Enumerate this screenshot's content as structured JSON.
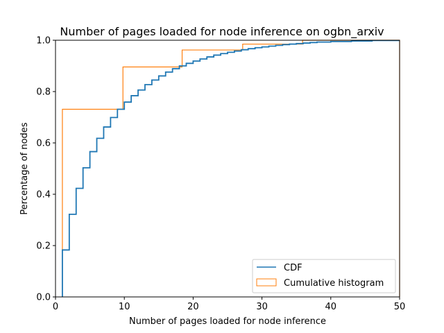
{
  "chart_data": {
    "type": "line",
    "title": "Number of pages loaded for node inference on ogbn_arxiv",
    "xlabel": "Number of pages loaded for node inference",
    "ylabel": "Percentage of nodes",
    "xlim": [
      0,
      50
    ],
    "ylim": [
      0,
      1.0
    ],
    "x_ticks": [
      0,
      10,
      20,
      30,
      40,
      50
    ],
    "y_ticks": [
      0.0,
      0.2,
      0.4,
      0.6,
      0.8,
      1.0
    ],
    "x_tick_labels": [
      "0",
      "10",
      "20",
      "30",
      "40",
      "50"
    ],
    "y_tick_labels": [
      "0.0",
      "0.2",
      "0.4",
      "0.6",
      "0.8",
      "1.0"
    ],
    "grid": false,
    "legend_position": "lower-right",
    "series": [
      {
        "name": "CDF",
        "style": "step",
        "color": "#1f77b4",
        "points": [
          [
            1,
            0.0
          ],
          [
            1,
            0.183
          ],
          [
            2,
            0.183
          ],
          [
            2,
            0.322
          ],
          [
            3,
            0.322
          ],
          [
            3,
            0.423
          ],
          [
            4,
            0.423
          ],
          [
            4,
            0.503
          ],
          [
            5,
            0.503
          ],
          [
            5,
            0.566
          ],
          [
            6,
            0.566
          ],
          [
            6,
            0.618
          ],
          [
            7,
            0.618
          ],
          [
            7,
            0.662
          ],
          [
            8,
            0.662
          ],
          [
            8,
            0.699
          ],
          [
            9,
            0.699
          ],
          [
            9,
            0.731
          ],
          [
            10,
            0.731
          ],
          [
            10,
            0.759
          ],
          [
            11,
            0.759
          ],
          [
            11,
            0.784
          ],
          [
            12,
            0.784
          ],
          [
            12,
            0.806
          ],
          [
            13,
            0.806
          ],
          [
            13,
            0.827
          ],
          [
            14,
            0.827
          ],
          [
            14,
            0.845
          ],
          [
            15,
            0.845
          ],
          [
            15,
            0.861
          ],
          [
            16,
            0.861
          ],
          [
            16,
            0.876
          ],
          [
            17,
            0.876
          ],
          [
            17,
            0.889
          ],
          [
            18,
            0.889
          ],
          [
            18,
            0.9
          ],
          [
            19,
            0.9
          ],
          [
            19,
            0.91
          ],
          [
            20,
            0.91
          ],
          [
            20,
            0.919
          ],
          [
            21,
            0.919
          ],
          [
            21,
            0.927
          ],
          [
            22,
            0.927
          ],
          [
            22,
            0.935
          ],
          [
            23,
            0.935
          ],
          [
            23,
            0.942
          ],
          [
            24,
            0.942
          ],
          [
            24,
            0.948
          ],
          [
            25,
            0.948
          ],
          [
            25,
            0.953
          ],
          [
            26,
            0.953
          ],
          [
            26,
            0.958
          ],
          [
            27,
            0.958
          ],
          [
            27,
            0.963
          ],
          [
            28,
            0.963
          ],
          [
            28,
            0.967
          ],
          [
            29,
            0.967
          ],
          [
            29,
            0.971
          ],
          [
            30,
            0.971
          ],
          [
            30,
            0.974
          ],
          [
            31,
            0.974
          ],
          [
            31,
            0.977
          ],
          [
            32,
            0.977
          ],
          [
            32,
            0.98
          ],
          [
            33,
            0.98
          ],
          [
            33,
            0.983
          ],
          [
            34,
            0.983
          ],
          [
            34,
            0.985
          ],
          [
            35,
            0.985
          ],
          [
            35,
            0.987
          ],
          [
            36,
            0.987
          ],
          [
            36,
            0.989
          ],
          [
            37,
            0.989
          ],
          [
            37,
            0.991
          ],
          [
            38,
            0.991
          ],
          [
            38,
            0.993
          ],
          [
            40,
            0.993
          ],
          [
            40,
            0.995
          ],
          [
            43,
            0.995
          ],
          [
            43,
            0.997
          ],
          [
            46,
            0.997
          ],
          [
            46,
            0.999
          ],
          [
            50,
            0.999
          ]
        ]
      },
      {
        "name": "Cumulative histogram",
        "style": "step-outline",
        "color": "#ff7f0e",
        "bin_edges": [
          1.0,
          9.8,
          18.4,
          27.2,
          35.9,
          50.0
        ],
        "cumulative_values": [
          0.731,
          0.896,
          0.962,
          0.985,
          1.0
        ]
      }
    ]
  }
}
